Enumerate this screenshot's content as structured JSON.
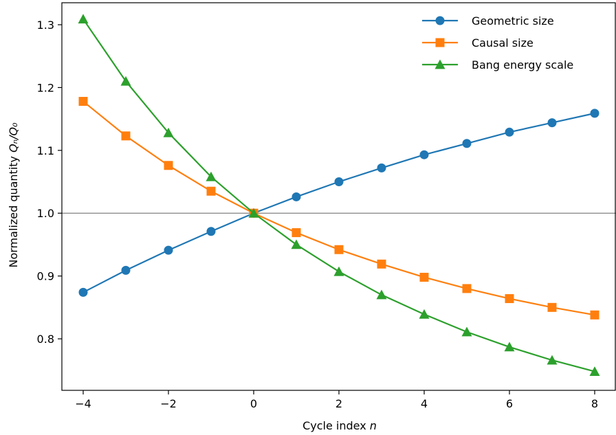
{
  "chart_data": {
    "type": "line",
    "xlabel": "Cycle index",
    "xlabel_var": "n",
    "ylabel": "Normalized quantity",
    "ylabel_var": "Qₙ/Q₀",
    "xlim": [
      -4.5,
      8.5
    ],
    "ylim": [
      0.718,
      1.335
    ],
    "xticks": [
      -4,
      -2,
      0,
      2,
      4,
      6,
      8
    ],
    "xtick_labels": [
      "−4",
      "−2",
      "0",
      "2",
      "4",
      "6",
      "8"
    ],
    "yticks": [
      0.8,
      0.9,
      1.0,
      1.1,
      1.2,
      1.3
    ],
    "ytick_labels": [
      "0.8",
      "0.9",
      "1.0",
      "1.1",
      "1.2",
      "1.3"
    ],
    "reference_line": 1.0,
    "grid": false,
    "legend_position": "top-right",
    "x": [
      -4,
      -3,
      -2,
      -1,
      0,
      1,
      2,
      3,
      4,
      5,
      6,
      7,
      8
    ],
    "series": [
      {
        "name": "Geometric size",
        "color": "#1f77b4",
        "marker": "circle",
        "values": [
          0.874,
          0.909,
          0.941,
          0.971,
          1.0,
          1.026,
          1.05,
          1.072,
          1.093,
          1.111,
          1.129,
          1.144,
          1.159
        ]
      },
      {
        "name": "Causal size",
        "color": "#ff7f0e",
        "marker": "square",
        "values": [
          1.178,
          1.123,
          1.076,
          1.035,
          1.0,
          0.969,
          0.942,
          0.919,
          0.898,
          0.88,
          0.864,
          0.85,
          0.838
        ]
      },
      {
        "name": "Bang energy scale",
        "color": "#2ca02c",
        "marker": "triangle",
        "values": [
          1.309,
          1.21,
          1.128,
          1.058,
          1.0,
          0.95,
          0.907,
          0.87,
          0.839,
          0.811,
          0.787,
          0.766,
          0.748
        ]
      }
    ]
  }
}
